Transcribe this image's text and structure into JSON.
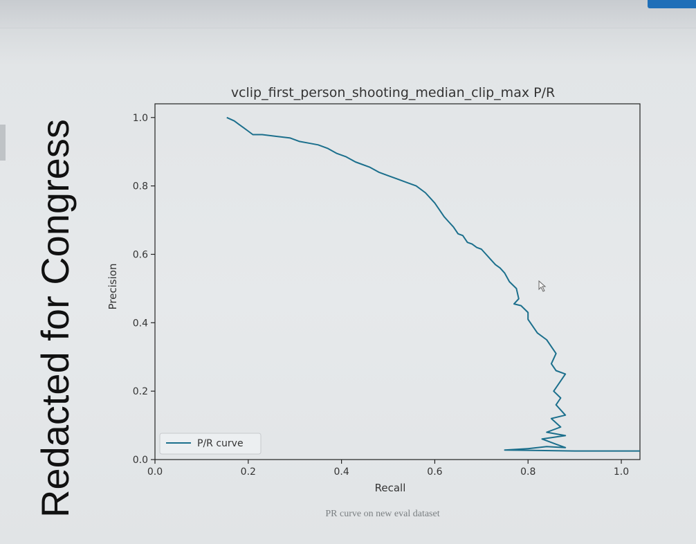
{
  "redaction_label": "Redacted for Congress",
  "caption": "PR curve on new eval dataset",
  "colors": {
    "line": "#1b6f8c",
    "axis": "#222222",
    "text": "#333333",
    "corner_button": "#1f6fb8"
  },
  "chart_data": {
    "type": "line",
    "title": "vclip_first_person_shooting_median_clip_max P/R",
    "xlabel": "Recall",
    "ylabel": "Precision",
    "xlim": [
      0,
      1.04
    ],
    "ylim": [
      0,
      1.04
    ],
    "xticks": [
      0.0,
      0.2,
      0.4,
      0.6,
      0.8,
      1.0
    ],
    "yticks": [
      0.0,
      0.2,
      0.4,
      0.6,
      0.8,
      1.0
    ],
    "tick_labels_x": [
      "0.0",
      "0.2",
      "0.4",
      "0.6",
      "0.8",
      "1.0"
    ],
    "tick_labels_y": [
      "0.0",
      "0.2",
      "0.4",
      "0.6",
      "0.8",
      "1.0"
    ],
    "grid": false,
    "legend_position": "lower-left",
    "series": [
      {
        "name": "P/R curve",
        "x": [
          0.154,
          0.17,
          0.18,
          0.19,
          0.2,
          0.21,
          0.23,
          0.26,
          0.29,
          0.31,
          0.33,
          0.35,
          0.37,
          0.39,
          0.41,
          0.43,
          0.44,
          0.46,
          0.48,
          0.5,
          0.52,
          0.54,
          0.56,
          0.58,
          0.59,
          0.6,
          0.61,
          0.62,
          0.63,
          0.64,
          0.65,
          0.66,
          0.67,
          0.68,
          0.69,
          0.7,
          0.71,
          0.72,
          0.73,
          0.74,
          0.75,
          0.76,
          0.775,
          0.78,
          0.77,
          0.785,
          0.8,
          0.8,
          0.81,
          0.82,
          0.84,
          0.86,
          0.85,
          0.86,
          0.88,
          0.855,
          0.87,
          0.86,
          0.88,
          0.85,
          0.87,
          0.84,
          0.88,
          0.83,
          0.86,
          0.88,
          0.84,
          0.8,
          0.75,
          0.9,
          1.04
        ],
        "y": [
          1.0,
          0.99,
          0.98,
          0.97,
          0.96,
          0.95,
          0.95,
          0.945,
          0.94,
          0.93,
          0.925,
          0.92,
          0.91,
          0.895,
          0.885,
          0.87,
          0.865,
          0.855,
          0.84,
          0.83,
          0.82,
          0.81,
          0.8,
          0.78,
          0.765,
          0.75,
          0.73,
          0.71,
          0.695,
          0.68,
          0.66,
          0.655,
          0.635,
          0.63,
          0.62,
          0.615,
          0.6,
          0.585,
          0.57,
          0.56,
          0.545,
          0.52,
          0.5,
          0.47,
          0.455,
          0.45,
          0.43,
          0.41,
          0.39,
          0.37,
          0.35,
          0.31,
          0.28,
          0.26,
          0.25,
          0.2,
          0.18,
          0.16,
          0.13,
          0.12,
          0.095,
          0.08,
          0.07,
          0.06,
          0.045,
          0.035,
          0.038,
          0.032,
          0.028,
          0.025,
          0.025
        ]
      }
    ]
  }
}
